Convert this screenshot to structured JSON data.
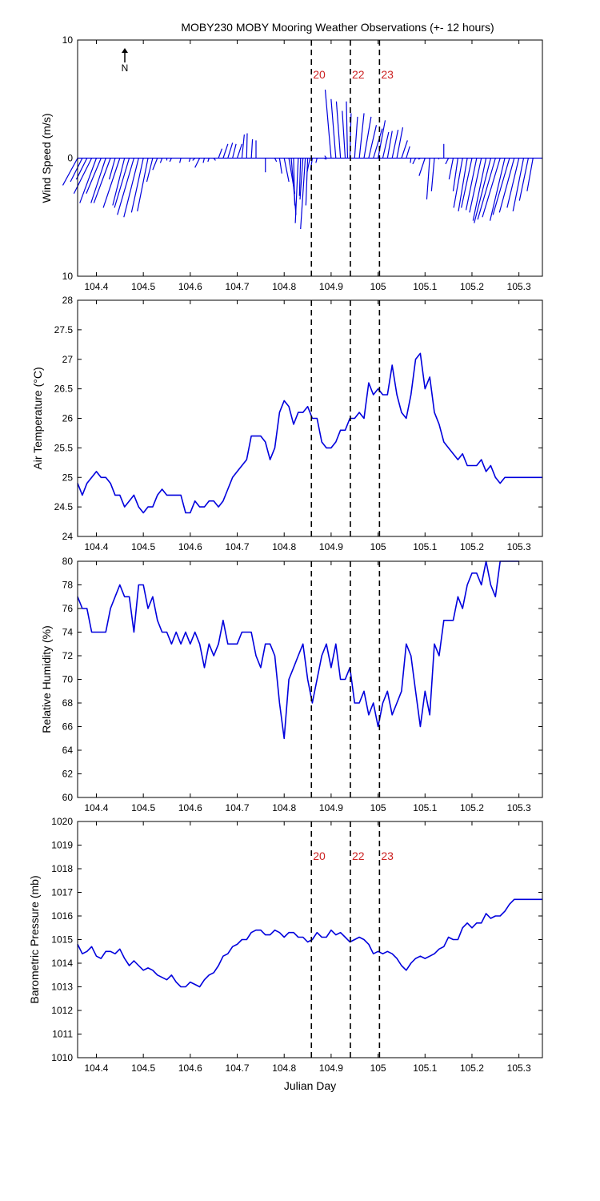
{
  "title": "MOBY230 MOBY Mooring Weather Observations (+- 12 hours)",
  "north_label": "N",
  "colors": {
    "series": "#0000dd",
    "marker_text": "#cc2222",
    "marker_line": "#000000"
  },
  "markers": [
    {
      "x": 104.858,
      "label": "20"
    },
    {
      "x": 104.941,
      "label": "22"
    },
    {
      "x": 105.003,
      "label": "23"
    }
  ],
  "chart_data": [
    {
      "type": "line",
      "subtype": "wind-stick",
      "ylabel": "Wind Speed (m/s)",
      "xlim": [
        104.36,
        105.35
      ],
      "ylim": [
        -10,
        10
      ],
      "ytick_labels": [
        "10",
        "0",
        "10"
      ],
      "xticks": [
        104.4,
        104.5,
        104.6,
        104.7,
        104.8,
        104.9,
        105,
        105.1,
        105.2,
        105.3
      ],
      "xtick_labels": [
        "104.4",
        "104.5",
        "104.6",
        "104.7",
        "104.8",
        "104.9",
        "105",
        "105.1",
        "105.2",
        "105.3"
      ],
      "marker_labels": true,
      "sticks": [
        [
          104.36,
          -2.5,
          -2.3
        ],
        [
          104.37,
          -2.0,
          -2.0
        ],
        [
          104.38,
          -1.8,
          -1.8
        ],
        [
          104.39,
          -3.0,
          -3.0
        ],
        [
          104.4,
          -2.8,
          -3.8
        ],
        [
          104.41,
          -2.5,
          -3.0
        ],
        [
          104.42,
          -2.5,
          -3.8
        ],
        [
          104.43,
          -2.8,
          -3.8
        ],
        [
          104.44,
          -1.0,
          -1.8
        ],
        [
          104.45,
          -2.8,
          -4.2
        ],
        [
          104.46,
          -2.0,
          -4.0
        ],
        [
          104.47,
          -2.5,
          -4.2
        ],
        [
          104.48,
          -2.8,
          -4.8
        ],
        [
          104.49,
          -2.5,
          -5.0
        ],
        [
          104.5,
          -2.0,
          -4.6
        ],
        [
          104.51,
          -1.8,
          -4.5
        ],
        [
          104.52,
          -1.0,
          -2.0
        ],
        [
          104.53,
          -0.8,
          -1.0
        ],
        [
          104.54,
          -0.3,
          -0.4
        ],
        [
          104.55,
          0.0,
          -0.2
        ],
        [
          104.56,
          -0.3,
          -0.3
        ],
        [
          104.58,
          -0.2,
          -0.4
        ],
        [
          104.6,
          -0.2,
          -0.3
        ],
        [
          104.61,
          -0.4,
          -0.2
        ],
        [
          104.62,
          -0.8,
          -0.8
        ],
        [
          104.63,
          -0.2,
          -0.4
        ],
        [
          104.64,
          -0.2,
          -0.3
        ],
        [
          104.65,
          0.3,
          -0.2
        ],
        [
          104.66,
          0.6,
          0.8
        ],
        [
          104.67,
          0.8,
          1.2
        ],
        [
          104.68,
          0.8,
          1.3
        ],
        [
          104.69,
          0.6,
          1.2
        ],
        [
          104.7,
          0.8,
          1.2
        ],
        [
          104.71,
          0.4,
          2.0
        ],
        [
          104.72,
          0.1,
          2.1
        ],
        [
          104.73,
          0.2,
          1.6
        ],
        [
          104.74,
          0.0,
          1.5
        ],
        [
          104.76,
          0.0,
          -1.2
        ],
        [
          104.78,
          0.3,
          -0.3
        ],
        [
          104.79,
          0.4,
          -1.3
        ],
        [
          104.8,
          0.8,
          -2.0
        ],
        [
          104.81,
          1.0,
          -3.0
        ],
        [
          104.815,
          0.8,
          -4.8
        ],
        [
          104.82,
          0.2,
          -4.0
        ],
        [
          104.83,
          -0.5,
          -5.5
        ],
        [
          104.835,
          -0.2,
          -3.2
        ],
        [
          104.84,
          -0.5,
          -3.5
        ],
        [
          104.845,
          -0.8,
          -6.0
        ],
        [
          104.85,
          -0.3,
          -4.0
        ],
        [
          104.855,
          -0.5,
          -1.2
        ],
        [
          104.86,
          -0.3,
          -1.0
        ],
        [
          104.87,
          -0.2,
          -0.4
        ],
        [
          104.885,
          0.4,
          -0.1
        ],
        [
          104.89,
          -0.3,
          0.2
        ],
        [
          104.9,
          -1.0,
          5.8
        ],
        [
          104.91,
          -0.8,
          5.0
        ],
        [
          104.92,
          -0.7,
          4.8
        ],
        [
          104.93,
          -0.5,
          4.0
        ],
        [
          104.935,
          -0.2,
          4.8
        ],
        [
          104.94,
          0.2,
          3.8
        ],
        [
          104.95,
          0.5,
          3.5
        ],
        [
          104.96,
          0.8,
          3.8
        ],
        [
          104.97,
          1.2,
          3.5
        ],
        [
          104.98,
          1.3,
          2.8
        ],
        [
          104.99,
          1.5,
          2.5
        ],
        [
          105.0,
          1.2,
          3.2
        ],
        [
          105.01,
          1.0,
          2.2
        ],
        [
          105.02,
          0.8,
          2.3
        ],
        [
          105.03,
          1.0,
          2.4
        ],
        [
          105.04,
          1.0,
          2.6
        ],
        [
          105.05,
          1.0,
          1.5
        ],
        [
          105.06,
          0.6,
          1.0
        ],
        [
          105.07,
          -0.1,
          -0.4
        ],
        [
          105.08,
          -0.5,
          -0.5
        ],
        [
          105.09,
          -0.3,
          -0.1
        ],
        [
          105.1,
          -1.0,
          -1.5
        ],
        [
          105.11,
          -0.5,
          -3.5
        ],
        [
          105.12,
          -0.5,
          -2.8
        ],
        [
          105.13,
          -0.1,
          -0.1
        ],
        [
          105.14,
          0.0,
          1.2
        ],
        [
          105.15,
          -0.5,
          -0.5
        ],
        [
          105.16,
          -0.7,
          -1.8
        ],
        [
          105.17,
          -0.8,
          -2.8
        ],
        [
          105.18,
          -1.5,
          -4.2
        ],
        [
          105.19,
          -1.5,
          -4.5
        ],
        [
          105.2,
          -1.8,
          -4.2
        ],
        [
          105.21,
          -1.8,
          -4.4
        ],
        [
          105.22,
          -2.0,
          -4.6
        ],
        [
          105.23,
          -2.2,
          -5.3
        ],
        [
          105.24,
          -2.8,
          -5.5
        ],
        [
          105.25,
          -3.0,
          -5.2
        ],
        [
          105.26,
          -3.0,
          -5.0
        ],
        [
          105.27,
          -2.5,
          -5.3
        ],
        [
          105.28,
          -2.8,
          -4.8
        ],
        [
          105.29,
          -2.5,
          -4.6
        ],
        [
          105.3,
          -2.0,
          -4.2
        ],
        [
          105.31,
          -1.8,
          -4.5
        ],
        [
          105.32,
          -1.5,
          -3.6
        ],
        [
          105.33,
          -1.0,
          -2.8
        ]
      ]
    },
    {
      "type": "line",
      "ylabel": "Air Temperature (°C)",
      "xlim": [
        104.36,
        105.35
      ],
      "ylim": [
        24,
        28
      ],
      "yticks": [
        24,
        24.5,
        25,
        25.5,
        26,
        26.5,
        27,
        27.5,
        28
      ],
      "ytick_labels": [
        "24",
        "24.5",
        "25",
        "25.5",
        "26",
        "26.5",
        "27",
        "27.5",
        "28"
      ],
      "xticks": [
        104.4,
        104.5,
        104.6,
        104.7,
        104.8,
        104.9,
        105,
        105.1,
        105.2,
        105.3
      ],
      "xtick_labels": [
        "104.4",
        "104.5",
        "104.6",
        "104.7",
        "104.8",
        "104.9",
        "105",
        "105.1",
        "105.2",
        "105.3"
      ],
      "marker_labels": false,
      "x": [
        104.36,
        104.37,
        104.38,
        104.39,
        104.4,
        104.41,
        104.42,
        104.43,
        104.44,
        104.45,
        104.46,
        104.47,
        104.48,
        104.49,
        104.5,
        104.51,
        104.52,
        104.53,
        104.54,
        104.55,
        104.56,
        104.57,
        104.58,
        104.59,
        104.6,
        104.61,
        104.62,
        104.63,
        104.64,
        104.65,
        104.66,
        104.67,
        104.68,
        104.69,
        104.7,
        104.71,
        104.72,
        104.73,
        104.74,
        104.75,
        104.76,
        104.77,
        104.78,
        104.79,
        104.8,
        104.81,
        104.82,
        104.83,
        104.84,
        104.85,
        104.86,
        104.87,
        104.88,
        104.89,
        104.9,
        104.91,
        104.92,
        104.93,
        104.94,
        104.95,
        104.96,
        104.97,
        104.98,
        104.99,
        105.0,
        105.01,
        105.02,
        105.03,
        105.04,
        105.05,
        105.06,
        105.07,
        105.08,
        105.09,
        105.1,
        105.11,
        105.12,
        105.13,
        105.14,
        105.15,
        105.16,
        105.17,
        105.18,
        105.19,
        105.2,
        105.21,
        105.22,
        105.23,
        105.24,
        105.25,
        105.26,
        105.27,
        105.28,
        105.29,
        105.3,
        105.31,
        105.32,
        105.33,
        105.34,
        105.35
      ],
      "y": [
        24.9,
        24.7,
        24.9,
        25.0,
        25.1,
        25.0,
        25.0,
        24.9,
        24.7,
        24.7,
        24.5,
        24.6,
        24.7,
        24.5,
        24.4,
        24.5,
        24.5,
        24.7,
        24.8,
        24.7,
        24.7,
        24.7,
        24.7,
        24.4,
        24.4,
        24.6,
        24.5,
        24.5,
        24.6,
        24.6,
        24.5,
        24.6,
        24.8,
        25.0,
        25.1,
        25.2,
        25.3,
        25.7,
        25.7,
        25.7,
        25.6,
        25.3,
        25.5,
        26.1,
        26.3,
        26.2,
        25.9,
        26.1,
        26.1,
        26.2,
        26.0,
        26.0,
        25.6,
        25.5,
        25.5,
        25.6,
        25.8,
        25.8,
        26.0,
        26.0,
        26.1,
        26.0,
        26.6,
        26.4,
        26.5,
        26.4,
        26.4,
        26.9,
        26.4,
        26.1,
        26.0,
        26.4,
        27.0,
        27.1,
        26.5,
        26.7,
        26.1,
        25.9,
        25.6,
        25.5,
        25.4,
        25.3,
        25.4,
        25.2,
        25.2,
        25.2,
        25.3,
        25.1,
        25.2,
        25.0,
        24.9,
        25.0,
        25.0,
        25.0,
        25.0,
        25.0,
        25.0,
        25.0,
        25.0,
        25.0
      ]
    },
    {
      "type": "line",
      "ylabel": "Relative Humidity (%)",
      "xlim": [
        104.36,
        105.35
      ],
      "ylim": [
        60,
        80
      ],
      "yticks": [
        60,
        62,
        64,
        66,
        68,
        70,
        72,
        74,
        76,
        78,
        80
      ],
      "ytick_labels": [
        "60",
        "62",
        "64",
        "66",
        "68",
        "70",
        "72",
        "74",
        "76",
        "78",
        "80"
      ],
      "xticks": [
        104.4,
        104.5,
        104.6,
        104.7,
        104.8,
        104.9,
        105,
        105.1,
        105.2,
        105.3
      ],
      "xtick_labels": [
        "104.4",
        "104.5",
        "104.6",
        "104.7",
        "104.8",
        "104.9",
        "105",
        "105.1",
        "105.2",
        "105.3"
      ],
      "marker_labels": false,
      "x": [
        104.36,
        104.37,
        104.38,
        104.39,
        104.4,
        104.41,
        104.42,
        104.43,
        104.44,
        104.45,
        104.46,
        104.47,
        104.48,
        104.49,
        104.5,
        104.51,
        104.52,
        104.53,
        104.54,
        104.55,
        104.56,
        104.57,
        104.58,
        104.59,
        104.6,
        104.61,
        104.62,
        104.63,
        104.64,
        104.65,
        104.66,
        104.67,
        104.68,
        104.69,
        104.7,
        104.71,
        104.72,
        104.73,
        104.74,
        104.75,
        104.76,
        104.77,
        104.78,
        104.79,
        104.8,
        104.81,
        104.82,
        104.83,
        104.84,
        104.85,
        104.86,
        104.87,
        104.88,
        104.89,
        104.9,
        104.91,
        104.92,
        104.93,
        104.94,
        104.95,
        104.96,
        104.97,
        104.98,
        104.99,
        105.0,
        105.01,
        105.02,
        105.03,
        105.04,
        105.05,
        105.06,
        105.07,
        105.08,
        105.09,
        105.1,
        105.11,
        105.12,
        105.13,
        105.14,
        105.15,
        105.16,
        105.17,
        105.18,
        105.19,
        105.2,
        105.21,
        105.22,
        105.23,
        105.24,
        105.25,
        105.26,
        105.27,
        105.28,
        105.29,
        105.3
      ],
      "y": [
        77,
        76,
        76,
        74,
        74,
        74,
        74,
        76,
        77,
        78,
        77,
        77,
        74,
        78,
        78,
        76,
        77,
        75,
        74,
        74,
        73,
        74,
        73,
        74,
        73,
        74,
        73,
        71,
        73,
        72,
        73,
        75,
        73,
        73,
        73,
        74,
        74,
        74,
        72,
        71,
        73,
        73,
        72,
        68,
        65,
        70,
        71,
        72,
        73,
        70,
        68,
        70,
        72,
        73,
        71,
        73,
        70,
        70,
        71,
        68,
        68,
        69,
        67,
        68,
        66,
        68,
        69,
        67,
        68,
        69,
        73,
        72,
        69,
        66,
        69,
        67,
        73,
        72,
        75,
        75,
        75,
        77,
        76,
        78,
        79,
        79,
        78,
        80,
        78,
        77,
        80,
        80,
        80,
        80,
        80
      ]
    },
    {
      "type": "line",
      "xlabel": "Julian Day",
      "ylabel": "Barometric Pressure (mb)",
      "xlim": [
        104.36,
        105.35
      ],
      "ylim": [
        1010,
        1020
      ],
      "yticks": [
        1010,
        1011,
        1012,
        1013,
        1014,
        1015,
        1016,
        1017,
        1018,
        1019,
        1020
      ],
      "ytick_labels": [
        "1010",
        "1011",
        "1012",
        "1013",
        "1014",
        "1015",
        "1016",
        "1017",
        "1018",
        "1019",
        "1020"
      ],
      "xticks": [
        104.4,
        104.5,
        104.6,
        104.7,
        104.8,
        104.9,
        105,
        105.1,
        105.2,
        105.3
      ],
      "xtick_labels": [
        "104.4",
        "104.5",
        "104.6",
        "104.7",
        "104.8",
        "104.9",
        "105",
        "105.1",
        "105.2",
        "105.3"
      ],
      "marker_labels": true,
      "x": [
        104.36,
        104.37,
        104.38,
        104.39,
        104.4,
        104.41,
        104.42,
        104.43,
        104.44,
        104.45,
        104.46,
        104.47,
        104.48,
        104.49,
        104.5,
        104.51,
        104.52,
        104.53,
        104.54,
        104.55,
        104.56,
        104.57,
        104.58,
        104.59,
        104.6,
        104.61,
        104.62,
        104.63,
        104.64,
        104.65,
        104.66,
        104.67,
        104.68,
        104.69,
        104.7,
        104.71,
        104.72,
        104.73,
        104.74,
        104.75,
        104.76,
        104.77,
        104.78,
        104.79,
        104.8,
        104.81,
        104.82,
        104.83,
        104.84,
        104.85,
        104.86,
        104.87,
        104.88,
        104.89,
        104.9,
        104.91,
        104.92,
        104.93,
        104.94,
        104.95,
        104.96,
        104.97,
        104.98,
        104.99,
        105.0,
        105.01,
        105.02,
        105.03,
        105.04,
        105.05,
        105.06,
        105.07,
        105.08,
        105.09,
        105.1,
        105.11,
        105.12,
        105.13,
        105.14,
        105.15,
        105.16,
        105.17,
        105.18,
        105.19,
        105.2,
        105.21,
        105.22,
        105.23,
        105.24,
        105.25,
        105.26,
        105.27,
        105.28,
        105.29,
        105.3,
        105.31,
        105.32,
        105.33,
        105.34,
        105.35
      ],
      "y": [
        1014.8,
        1014.4,
        1014.5,
        1014.7,
        1014.3,
        1014.2,
        1014.5,
        1014.5,
        1014.4,
        1014.6,
        1014.2,
        1013.9,
        1014.1,
        1013.9,
        1013.7,
        1013.8,
        1013.7,
        1013.5,
        1013.4,
        1013.3,
        1013.5,
        1013.2,
        1013.0,
        1013.0,
        1013.2,
        1013.1,
        1013.0,
        1013.3,
        1013.5,
        1013.6,
        1013.9,
        1014.3,
        1014.4,
        1014.7,
        1014.8,
        1015.0,
        1015.0,
        1015.3,
        1015.4,
        1015.4,
        1015.2,
        1015.2,
        1015.4,
        1015.3,
        1015.1,
        1015.3,
        1015.3,
        1015.1,
        1015.1,
        1014.9,
        1015.0,
        1015.3,
        1015.1,
        1015.1,
        1015.4,
        1015.2,
        1015.3,
        1015.1,
        1014.9,
        1015.0,
        1015.1,
        1015.0,
        1014.8,
        1014.4,
        1014.5,
        1014.4,
        1014.5,
        1014.4,
        1014.2,
        1013.9,
        1013.7,
        1014.0,
        1014.2,
        1014.3,
        1014.2,
        1014.3,
        1014.4,
        1014.6,
        1014.7,
        1015.1,
        1015.0,
        1015.0,
        1015.5,
        1015.7,
        1015.5,
        1015.7,
        1015.7,
        1016.1,
        1015.9,
        1016.0,
        1016.0,
        1016.2,
        1016.5,
        1016.7,
        1016.7,
        1016.7,
        1016.7,
        1016.7,
        1016.7,
        1016.7
      ]
    }
  ]
}
